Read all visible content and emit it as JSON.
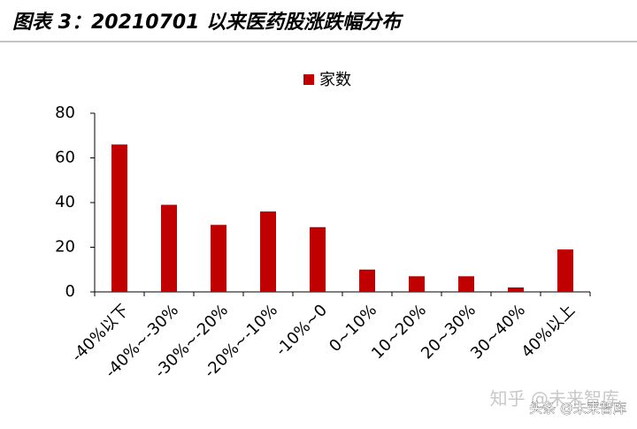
{
  "chart_data": {
    "type": "bar",
    "title": "图表 3：20210701 以来医药股涨跌幅分布",
    "categories": [
      "-40%以下",
      "-40%~-30%",
      "-30%~-20%",
      "-20%~-10%",
      "-10%~0",
      "0~10%",
      "10~20%",
      "20~30%",
      "30~40%",
      "40%以上"
    ],
    "series": [
      {
        "name": "家数",
        "color": "#c00000",
        "values": [
          66,
          39,
          30,
          36,
          29,
          10,
          7,
          7,
          2,
          19
        ]
      }
    ],
    "ylim": [
      0,
      80
    ],
    "yticks": [
      0,
      20,
      40,
      60,
      80
    ],
    "grid": false,
    "legend": "top",
    "annotations": [
      "知乎 @未来智库",
      "头条 @未来智库"
    ]
  }
}
